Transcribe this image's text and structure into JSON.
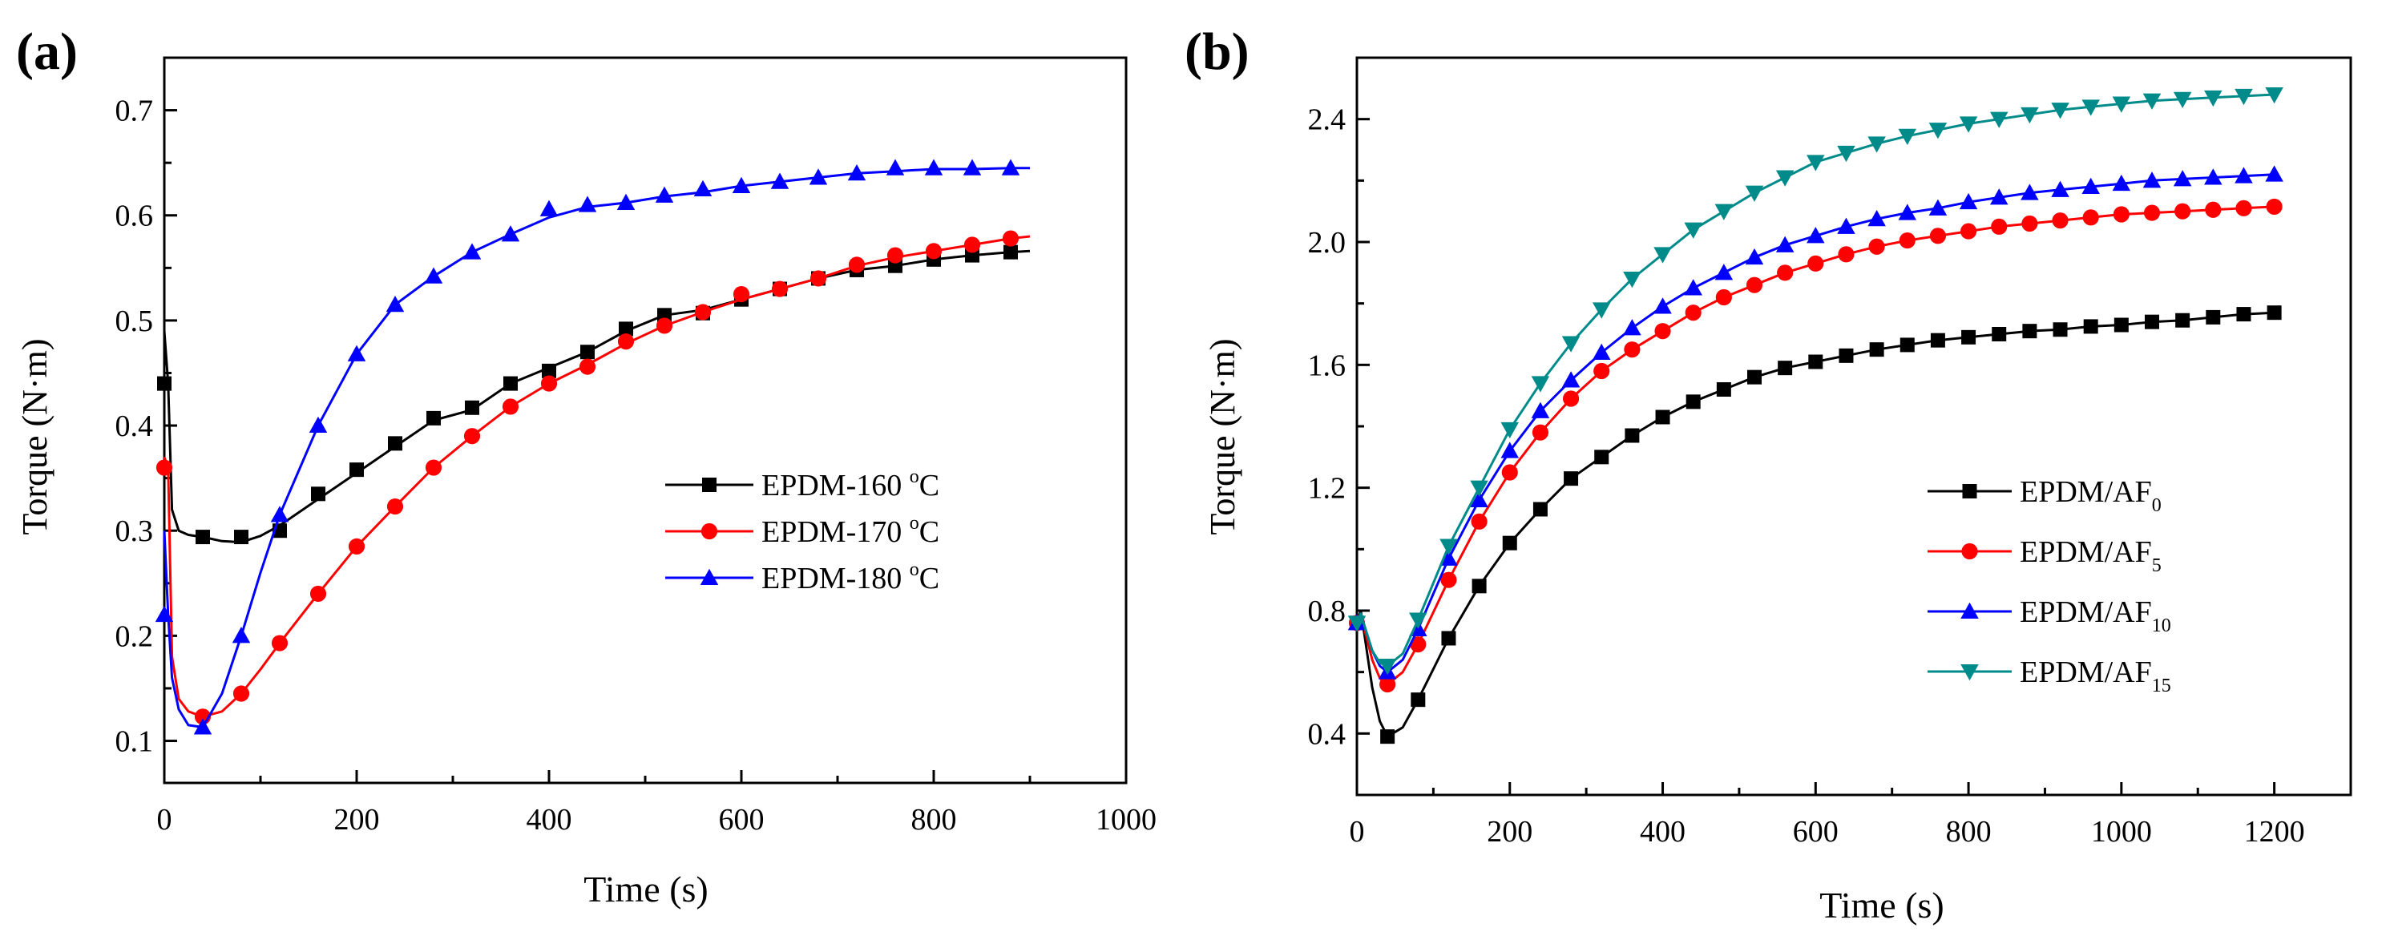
{
  "chart_data": [
    {
      "type": "line",
      "panel_label": "(a)",
      "xlabel": "Time (s)",
      "ylabel": "Torque (N·m)",
      "xlim": [
        0,
        1000
      ],
      "ylim": [
        0.06,
        0.75
      ],
      "xticks": [
        "0",
        "200",
        "400",
        "600",
        "800",
        "1000"
      ],
      "yticks": [
        "0.1",
        "0.2",
        "0.3",
        "0.4",
        "0.5",
        "0.6",
        "0.7"
      ],
      "legend_position": "center-right",
      "series": [
        {
          "name": "EPDM-160 °C",
          "name_main": "EPDM-160 ",
          "name_sup": "o",
          "name_tail": "C",
          "color": "#000000",
          "marker": "square",
          "x": [
            0,
            4,
            8,
            15,
            25,
            40,
            60,
            80,
            100,
            120,
            160,
            200,
            240,
            280,
            320,
            360,
            400,
            440,
            480,
            520,
            560,
            600,
            640,
            680,
            720,
            760,
            800,
            840,
            880,
            900
          ],
          "y": [
            0.49,
            0.44,
            0.32,
            0.3,
            0.296,
            0.294,
            0.29,
            0.289,
            0.295,
            0.305,
            0.33,
            0.355,
            0.38,
            0.405,
            0.415,
            0.44,
            0.455,
            0.47,
            0.49,
            0.505,
            0.51,
            0.52,
            0.53,
            0.54,
            0.548,
            0.552,
            0.558,
            0.562,
            0.565,
            0.566
          ],
          "marker_x": [
            0,
            40,
            80,
            120,
            160,
            200,
            240,
            280,
            320,
            360,
            400,
            440,
            480,
            520,
            560,
            600,
            640,
            680,
            720,
            760,
            800,
            840,
            880
          ],
          "marker_y": [
            0.44,
            0.294,
            0.294,
            0.3,
            0.335,
            0.358,
            0.383,
            0.407,
            0.417,
            0.44,
            0.452,
            0.47,
            0.492,
            0.505,
            0.507,
            0.52,
            0.53,
            0.54,
            0.548,
            0.552,
            0.558,
            0.562,
            0.565
          ]
        },
        {
          "name": "EPDM-170 °C",
          "name_main": "EPDM-170 ",
          "name_sup": "o",
          "name_tail": "C",
          "color": "#ff0000",
          "marker": "circle",
          "x": [
            0,
            4,
            8,
            15,
            25,
            40,
            60,
            80,
            100,
            120,
            160,
            200,
            240,
            280,
            320,
            360,
            400,
            440,
            480,
            520,
            560,
            600,
            640,
            680,
            720,
            760,
            800,
            840,
            880,
            900
          ],
          "y": [
            0.37,
            0.36,
            0.18,
            0.14,
            0.128,
            0.123,
            0.128,
            0.145,
            0.168,
            0.193,
            0.24,
            0.285,
            0.323,
            0.36,
            0.39,
            0.418,
            0.44,
            0.458,
            0.478,
            0.495,
            0.508,
            0.52,
            0.53,
            0.54,
            0.552,
            0.56,
            0.566,
            0.572,
            0.578,
            0.58
          ],
          "marker_x": [
            0,
            40,
            80,
            120,
            160,
            200,
            240,
            280,
            320,
            360,
            400,
            440,
            480,
            520,
            560,
            600,
            640,
            680,
            720,
            760,
            800,
            840,
            880
          ],
          "marker_y": [
            0.36,
            0.123,
            0.145,
            0.193,
            0.24,
            0.285,
            0.323,
            0.36,
            0.39,
            0.418,
            0.44,
            0.456,
            0.48,
            0.495,
            0.508,
            0.525,
            0.53,
            0.54,
            0.553,
            0.562,
            0.566,
            0.572,
            0.578
          ]
        },
        {
          "name": "EPDM-180 °C",
          "name_main": "EPDM-180 ",
          "name_sup": "o",
          "name_tail": "C",
          "color": "#0000ff",
          "marker": "triangle-up",
          "x": [
            0,
            4,
            8,
            15,
            25,
            40,
            60,
            80,
            100,
            120,
            160,
            200,
            240,
            280,
            320,
            360,
            400,
            440,
            480,
            520,
            560,
            600,
            640,
            680,
            720,
            760,
            800,
            840,
            880,
            900
          ],
          "y": [
            0.3,
            0.22,
            0.16,
            0.13,
            0.115,
            0.113,
            0.145,
            0.2,
            0.26,
            0.315,
            0.4,
            0.468,
            0.515,
            0.542,
            0.565,
            0.582,
            0.598,
            0.608,
            0.612,
            0.618,
            0.622,
            0.628,
            0.632,
            0.636,
            0.64,
            0.642,
            0.644,
            0.644,
            0.645,
            0.645
          ],
          "marker_x": [
            0,
            40,
            80,
            120,
            160,
            200,
            240,
            280,
            320,
            360,
            400,
            440,
            480,
            520,
            560,
            600,
            640,
            680,
            720,
            760,
            800,
            840,
            880
          ],
          "marker_y": [
            0.22,
            0.113,
            0.2,
            0.315,
            0.4,
            0.468,
            0.515,
            0.542,
            0.565,
            0.582,
            0.606,
            0.61,
            0.612,
            0.619,
            0.625,
            0.628,
            0.632,
            0.636,
            0.64,
            0.645,
            0.645,
            0.645,
            0.645
          ]
        }
      ]
    },
    {
      "type": "line",
      "panel_label": "(b)",
      "xlabel": "Time (s)",
      "ylabel": "Torque (N·m)",
      "xlim": [
        0,
        1300
      ],
      "ylim": [
        0.2,
        2.6
      ],
      "xticks": [
        "0",
        "200",
        "400",
        "600",
        "800",
        "1000",
        "1200"
      ],
      "yticks": [
        "0.4",
        "0.8",
        "1.2",
        "1.6",
        "2.0",
        "2.4"
      ],
      "legend_position": "bottom-right",
      "series": [
        {
          "name": "EPDM/AF0",
          "name_main": "EPDM/AF",
          "name_sub": "0",
          "color": "#000000",
          "marker": "square",
          "x": [
            0,
            5,
            10,
            20,
            30,
            40,
            60,
            80,
            120,
            160,
            200,
            240,
            280,
            320,
            360,
            400,
            440,
            480,
            520,
            560,
            600,
            640,
            680,
            720,
            760,
            800,
            840,
            880,
            920,
            960,
            1000,
            1040,
            1080,
            1120,
            1160,
            1200
          ],
          "y": [
            0.76,
            0.8,
            0.72,
            0.55,
            0.44,
            0.39,
            0.42,
            0.51,
            0.71,
            0.88,
            1.02,
            1.13,
            1.23,
            1.3,
            1.37,
            1.43,
            1.48,
            1.52,
            1.56,
            1.59,
            1.61,
            1.63,
            1.65,
            1.665,
            1.68,
            1.69,
            1.7,
            1.71,
            1.715,
            1.725,
            1.73,
            1.74,
            1.745,
            1.755,
            1.765,
            1.77
          ],
          "marker_x": [
            0,
            40,
            80,
            120,
            160,
            200,
            240,
            280,
            320,
            360,
            400,
            440,
            480,
            520,
            560,
            600,
            640,
            680,
            720,
            760,
            800,
            840,
            880,
            920,
            960,
            1000,
            1040,
            1080,
            1120,
            1160,
            1200
          ],
          "marker_y": [
            0.76,
            0.39,
            0.51,
            0.71,
            0.88,
            1.02,
            1.13,
            1.23,
            1.3,
            1.37,
            1.43,
            1.48,
            1.52,
            1.56,
            1.59,
            1.61,
            1.63,
            1.65,
            1.665,
            1.68,
            1.69,
            1.7,
            1.71,
            1.715,
            1.725,
            1.73,
            1.74,
            1.745,
            1.755,
            1.765,
            1.77
          ]
        },
        {
          "name": "EPDM/AF5",
          "name_main": "EPDM/AF",
          "name_sub": "5",
          "color": "#ff0000",
          "marker": "circle",
          "x": [
            0,
            5,
            10,
            20,
            30,
            40,
            60,
            80,
            120,
            160,
            200,
            240,
            280,
            320,
            360,
            400,
            440,
            480,
            520,
            560,
            600,
            640,
            680,
            720,
            760,
            800,
            840,
            880,
            920,
            960,
            1000,
            1040,
            1080,
            1120,
            1160,
            1200
          ],
          "y": [
            0.76,
            0.79,
            0.74,
            0.64,
            0.58,
            0.56,
            0.6,
            0.69,
            0.9,
            1.09,
            1.25,
            1.38,
            1.49,
            1.58,
            1.65,
            1.71,
            1.77,
            1.82,
            1.86,
            1.9,
            1.93,
            1.96,
            1.985,
            2.005,
            2.02,
            2.035,
            2.05,
            2.06,
            2.07,
            2.08,
            2.09,
            2.095,
            2.1,
            2.105,
            2.11,
            2.115
          ],
          "marker_x": [
            0,
            40,
            80,
            120,
            160,
            200,
            240,
            280,
            320,
            360,
            400,
            440,
            480,
            520,
            560,
            600,
            640,
            680,
            720,
            760,
            800,
            840,
            880,
            920,
            960,
            1000,
            1040,
            1080,
            1120,
            1160,
            1200
          ],
          "marker_y": [
            0.76,
            0.56,
            0.69,
            0.9,
            1.09,
            1.25,
            1.38,
            1.49,
            1.58,
            1.65,
            1.71,
            1.77,
            1.82,
            1.86,
            1.9,
            1.93,
            1.96,
            1.985,
            2.005,
            2.02,
            2.035,
            2.05,
            2.06,
            2.07,
            2.08,
            2.09,
            2.095,
            2.1,
            2.105,
            2.11,
            2.115
          ]
        },
        {
          "name": "EPDM/AF10",
          "name_main": "EPDM/AF",
          "name_sub": "10",
          "color": "#0000ff",
          "marker": "triangle-up",
          "x": [
            0,
            5,
            10,
            20,
            30,
            40,
            60,
            80,
            120,
            160,
            200,
            240,
            280,
            320,
            360,
            400,
            440,
            480,
            520,
            560,
            600,
            640,
            680,
            720,
            760,
            800,
            840,
            880,
            920,
            960,
            1000,
            1040,
            1080,
            1120,
            1160,
            1200
          ],
          "y": [
            0.76,
            0.79,
            0.75,
            0.67,
            0.62,
            0.6,
            0.64,
            0.74,
            0.97,
            1.16,
            1.32,
            1.45,
            1.55,
            1.64,
            1.72,
            1.79,
            1.85,
            1.9,
            1.95,
            1.99,
            2.02,
            2.05,
            2.075,
            2.095,
            2.11,
            2.13,
            2.145,
            2.16,
            2.17,
            2.18,
            2.19,
            2.2,
            2.205,
            2.21,
            2.215,
            2.22
          ],
          "marker_x": [
            0,
            40,
            80,
            120,
            160,
            200,
            240,
            280,
            320,
            360,
            400,
            440,
            480,
            520,
            560,
            600,
            640,
            680,
            720,
            760,
            800,
            840,
            880,
            920,
            960,
            1000,
            1040,
            1080,
            1120,
            1160,
            1200
          ],
          "marker_y": [
            0.76,
            0.6,
            0.74,
            0.97,
            1.16,
            1.32,
            1.45,
            1.55,
            1.64,
            1.72,
            1.79,
            1.85,
            1.9,
            1.95,
            1.99,
            2.02,
            2.05,
            2.075,
            2.095,
            2.11,
            2.13,
            2.145,
            2.16,
            2.17,
            2.18,
            2.19,
            2.2,
            2.205,
            2.21,
            2.215,
            2.22
          ]
        },
        {
          "name": "EPDM/AF15",
          "name_main": "EPDM/AF",
          "name_sub": "15",
          "color": "#008b8b",
          "marker": "triangle-down",
          "x": [
            0,
            5,
            10,
            20,
            30,
            40,
            60,
            80,
            120,
            160,
            200,
            240,
            280,
            320,
            360,
            400,
            440,
            480,
            520,
            560,
            600,
            640,
            680,
            720,
            760,
            800,
            840,
            880,
            920,
            960,
            1000,
            1040,
            1080,
            1120,
            1160,
            1200
          ],
          "y": [
            0.76,
            0.79,
            0.75,
            0.67,
            0.63,
            0.62,
            0.66,
            0.77,
            1.01,
            1.2,
            1.39,
            1.54,
            1.67,
            1.78,
            1.88,
            1.96,
            2.04,
            2.1,
            2.16,
            2.21,
            2.26,
            2.29,
            2.32,
            2.345,
            2.365,
            2.385,
            2.4,
            2.415,
            2.43,
            2.44,
            2.45,
            2.46,
            2.465,
            2.47,
            2.475,
            2.48
          ],
          "marker_x": [
            0,
            40,
            80,
            120,
            160,
            200,
            240,
            280,
            320,
            360,
            400,
            440,
            480,
            520,
            560,
            600,
            640,
            680,
            720,
            760,
            800,
            840,
            880,
            920,
            960,
            1000,
            1040,
            1080,
            1120,
            1160,
            1200
          ],
          "marker_y": [
            0.76,
            0.62,
            0.77,
            1.01,
            1.2,
            1.39,
            1.54,
            1.67,
            1.78,
            1.88,
            1.96,
            2.04,
            2.1,
            2.16,
            2.21,
            2.26,
            2.29,
            2.32,
            2.345,
            2.365,
            2.385,
            2.4,
            2.415,
            2.43,
            2.44,
            2.45,
            2.46,
            2.465,
            2.47,
            2.475,
            2.48
          ]
        }
      ]
    }
  ]
}
